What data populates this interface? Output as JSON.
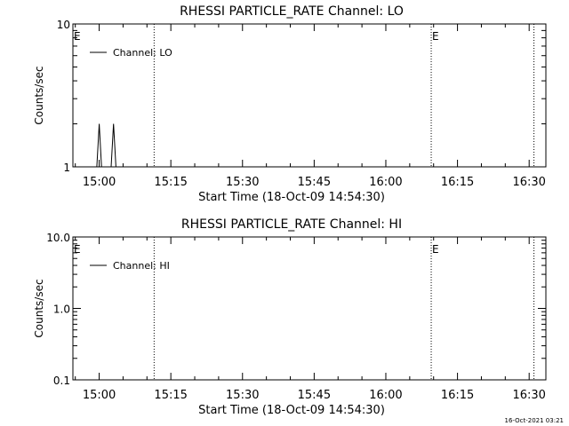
{
  "footer": {
    "timestamp": "16-Oct-2021 03:21"
  },
  "chart_data": [
    {
      "type": "line",
      "title": "RHESSI PARTICLE_RATE Channel: LO",
      "xlabel": "Start Time (18-Oct-09 14:54:30)",
      "ylabel": "Counts/sec",
      "y_scale": "log",
      "ylim": [
        1,
        10
      ],
      "y_ticks": [
        {
          "value": 1,
          "label": "1"
        },
        {
          "value": 10,
          "label": "10"
        }
      ],
      "xlim": [
        "14:54:30",
        "16:33:30"
      ],
      "x_ticks": [
        "15:00",
        "15:15",
        "15:30",
        "15:45",
        "16:00",
        "16:15",
        "16:30"
      ],
      "legend": {
        "placement": "top-left",
        "entries": [
          "Channel: LO"
        ]
      },
      "series": [
        {
          "name": "Channel: LO",
          "x": [
            "14:54:30",
            "14:59:30",
            "15:00:00",
            "15:00:30",
            "15:02:30",
            "15:03:00",
            "15:03:30",
            "16:33:30"
          ],
          "y": [
            1,
            1,
            2,
            1,
            1,
            2,
            1,
            1
          ]
        }
      ],
      "markers": [
        {
          "time": "14:54:30",
          "label": "E",
          "line": false
        },
        {
          "time": "15:11:30",
          "label": "",
          "line": true
        },
        {
          "time": "16:09:30",
          "label": "E",
          "line": true
        },
        {
          "time": "16:31:00",
          "label": "",
          "line": true
        }
      ]
    },
    {
      "type": "line",
      "title": "RHESSI PARTICLE_RATE Channel: HI",
      "xlabel": "Start Time (18-Oct-09 14:54:30)",
      "ylabel": "Counts/sec",
      "y_scale": "log",
      "ylim": [
        0.1,
        10
      ],
      "y_ticks": [
        {
          "value": 0.1,
          "label": "0.1"
        },
        {
          "value": 1,
          "label": "1.0"
        },
        {
          "value": 10,
          "label": "10.0"
        }
      ],
      "xlim": [
        "14:54:30",
        "16:33:30"
      ],
      "x_ticks": [
        "15:00",
        "15:15",
        "15:30",
        "15:45",
        "16:00",
        "16:15",
        "16:30"
      ],
      "legend": {
        "placement": "top-left",
        "entries": [
          "Channel: HI"
        ]
      },
      "series": [
        {
          "name": "Channel: HI",
          "x": [],
          "y": []
        }
      ],
      "markers": [
        {
          "time": "14:54:30",
          "label": "E",
          "line": false
        },
        {
          "time": "15:11:30",
          "label": "",
          "line": true
        },
        {
          "time": "16:09:30",
          "label": "E",
          "line": true
        },
        {
          "time": "16:31:00",
          "label": "",
          "line": true
        }
      ]
    }
  ]
}
